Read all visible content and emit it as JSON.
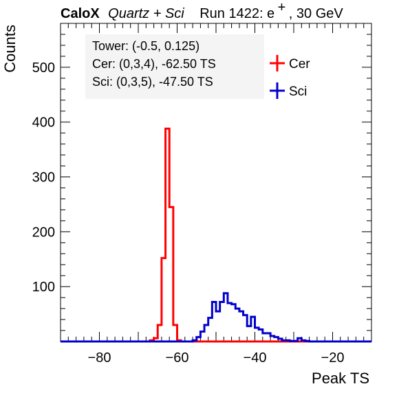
{
  "chart_data": {
    "type": "histogram",
    "title": {
      "brand": "CaloX",
      "subtitle": "Quartz + Sci",
      "run_prefix": "Run 1422: e",
      "run_superscript": "+",
      "run_suffix": ", 30 GeV"
    },
    "xlabel": "Peak TS",
    "ylabel": "Counts",
    "xlim": [
      -90,
      -10
    ],
    "ylim": [
      0,
      580
    ],
    "x_ticks": [
      -80,
      -60,
      -40,
      -20
    ],
    "y_ticks": [
      100,
      200,
      300,
      400,
      500
    ],
    "annotations": [
      "Tower: (-0.5, 0.125)",
      "Cer: (0,3,4), -62.50 TS",
      "Sci: (0,3,5), -47.50 TS"
    ],
    "legend": {
      "position": "top-right",
      "entries": [
        {
          "label": "Cer",
          "color": "#ff0000"
        },
        {
          "label": "Sci",
          "color": "#0000cc"
        }
      ]
    },
    "bin_width": 1,
    "series": [
      {
        "name": "Cer",
        "color": "#ff0000",
        "bins": [
          [
            -67,
            2
          ],
          [
            -66,
            6
          ],
          [
            -65,
            30
          ],
          [
            -64,
            152
          ],
          [
            -63,
            388
          ],
          [
            -62,
            245
          ],
          [
            -61,
            30
          ],
          [
            -60,
            2
          ]
        ]
      },
      {
        "name": "Sci",
        "color": "#0000cc",
        "bins": [
          [
            -56,
            2
          ],
          [
            -55,
            8
          ],
          [
            -54,
            18
          ],
          [
            -53,
            30
          ],
          [
            -52,
            43
          ],
          [
            -51,
            72
          ],
          [
            -50,
            55
          ],
          [
            -49,
            72
          ],
          [
            -48,
            88
          ],
          [
            -47,
            70
          ],
          [
            -46,
            68
          ],
          [
            -45,
            60
          ],
          [
            -44,
            55
          ],
          [
            -43,
            48
          ],
          [
            -42,
            28
          ],
          [
            -41,
            45
          ],
          [
            -40,
            25
          ],
          [
            -39,
            22
          ],
          [
            -38,
            15
          ],
          [
            -37,
            15
          ],
          [
            -36,
            10
          ],
          [
            -35,
            8
          ],
          [
            -34,
            5
          ],
          [
            -33,
            2
          ],
          [
            -32,
            2
          ],
          [
            -31,
            1
          ],
          [
            -30,
            1
          ],
          [
            -29,
            6
          ],
          [
            -28,
            2
          ],
          [
            -27,
            1
          ]
        ]
      }
    ]
  }
}
